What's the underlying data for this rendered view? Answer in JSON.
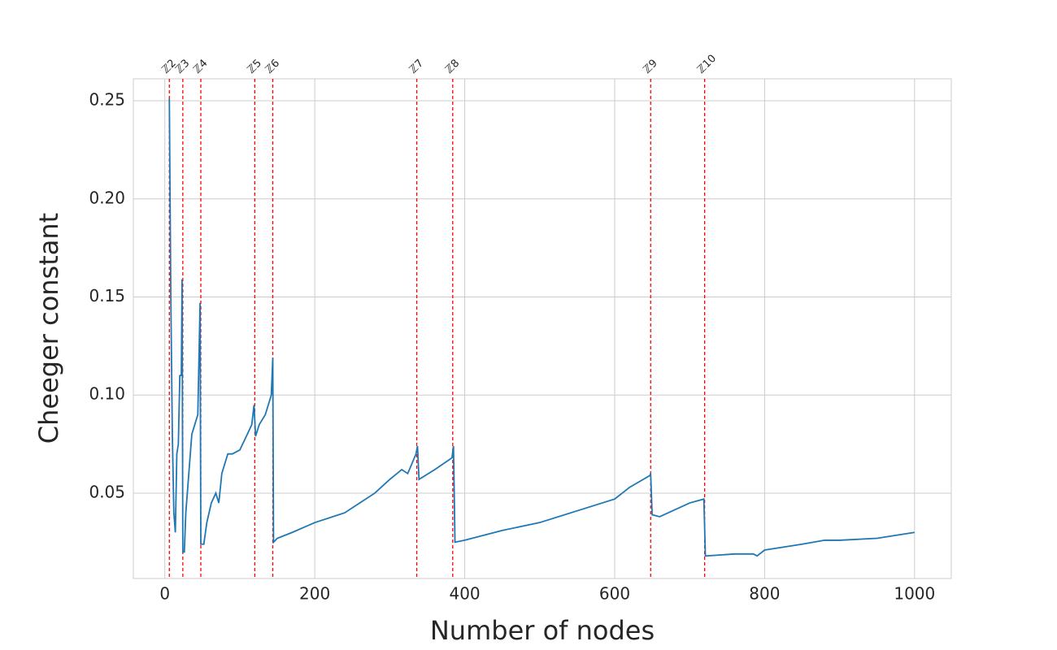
{
  "chart_data": {
    "type": "line",
    "xlabel": "Number of nodes",
    "ylabel": "Cheeger constant",
    "x": [
      6,
      8,
      10,
      12,
      14,
      16,
      18,
      20,
      22,
      23,
      24,
      26,
      28,
      32,
      36,
      40,
      44,
      47,
      48,
      52,
      56,
      62,
      68,
      72,
      76,
      84,
      90,
      100,
      110,
      116,
      119,
      121,
      126,
      134,
      142,
      144,
      145,
      150,
      170,
      200,
      240,
      260,
      280,
      300,
      316,
      324,
      335,
      337,
      339,
      360,
      383,
      385,
      387,
      400,
      450,
      500,
      550,
      600,
      620,
      647,
      648,
      650,
      660,
      700,
      719,
      721,
      760,
      785,
      790,
      800,
      850,
      880,
      900,
      950,
      1000
    ],
    "values": [
      0.251,
      0.15,
      0.08,
      0.04,
      0.03,
      0.07,
      0.075,
      0.11,
      0.11,
      0.159,
      0.02,
      0.02,
      0.04,
      0.06,
      0.08,
      0.085,
      0.09,
      0.147,
      0.024,
      0.024,
      0.035,
      0.045,
      0.05,
      0.045,
      0.06,
      0.07,
      0.07,
      0.072,
      0.08,
      0.085,
      0.095,
      0.079,
      0.085,
      0.09,
      0.1,
      0.119,
      0.025,
      0.027,
      0.03,
      0.035,
      0.04,
      0.045,
      0.05,
      0.057,
      0.062,
      0.06,
      0.07,
      0.074,
      0.057,
      0.062,
      0.068,
      0.074,
      0.025,
      0.026,
      0.031,
      0.035,
      0.041,
      0.047,
      0.053,
      0.059,
      0.06,
      0.039,
      0.038,
      0.045,
      0.047,
      0.018,
      0.019,
      0.019,
      0.018,
      0.021,
      0.024,
      0.026,
      0.026,
      0.027,
      0.03
    ],
    "color": "#1f77b4",
    "vlines": [
      {
        "x": 6,
        "label": "ℤ2"
      },
      {
        "x": 24,
        "label": "ℤ3"
      },
      {
        "x": 48,
        "label": "ℤ4"
      },
      {
        "x": 120,
        "label": "ℤ5"
      },
      {
        "x": 144,
        "label": "ℤ6"
      },
      {
        "x": 336,
        "label": "ℤ7"
      },
      {
        "x": 384,
        "label": "ℤ8"
      },
      {
        "x": 648,
        "label": "ℤ9"
      },
      {
        "x": 720,
        "label": "ℤ10"
      }
    ],
    "vline_color": "#ff0000",
    "xlim": [
      -42,
      1049
    ],
    "ylim": [
      0.0065,
      0.2612
    ],
    "xticks": [
      0,
      200,
      400,
      600,
      800,
      1000
    ],
    "yticks": [
      0.05,
      {
        "value": 0.1,
        "label": "0.10"
      },
      0.15,
      {
        "value": 0.2,
        "label": "0.20"
      },
      0.25
    ],
    "grid": true
  }
}
